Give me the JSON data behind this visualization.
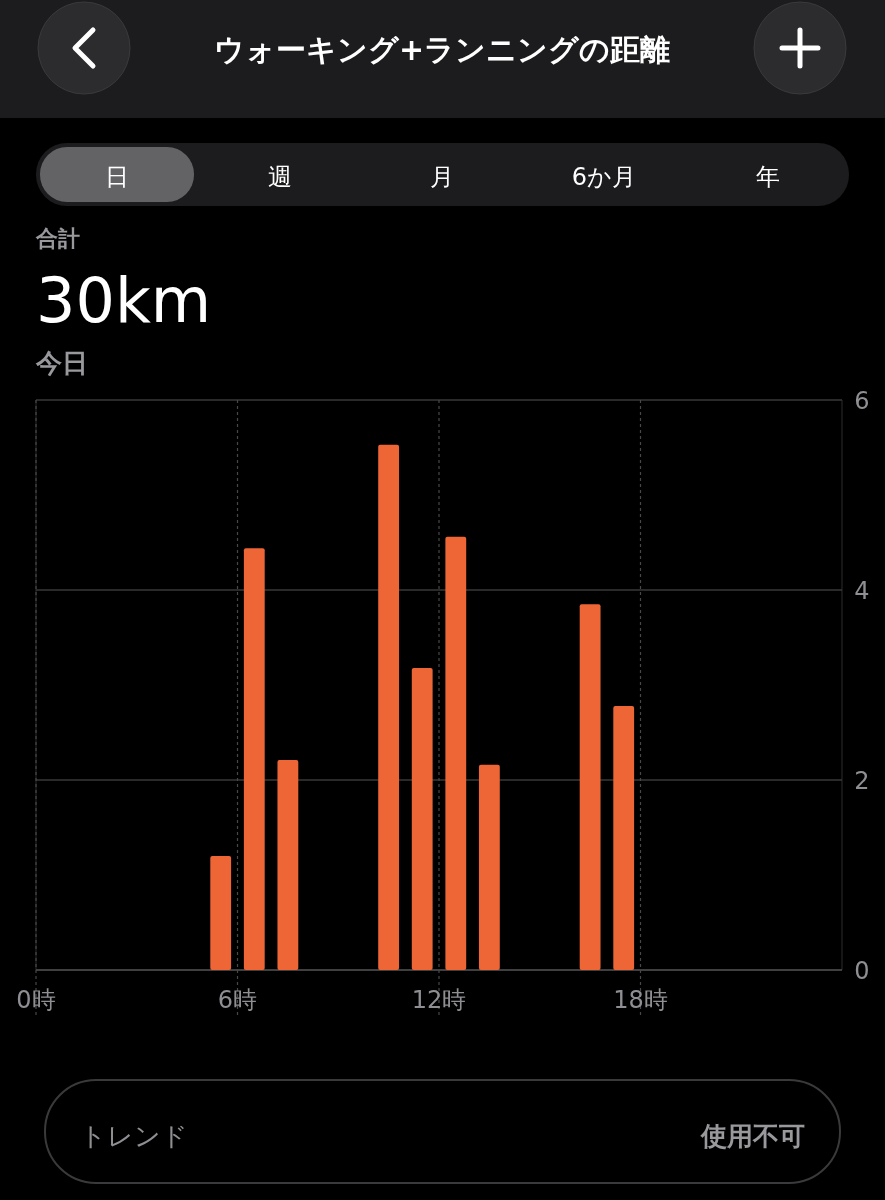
{
  "chart_data": {
    "type": "bar",
    "title": "ウォーキング+ランニングの距離",
    "annotations": [
      "日",
      "週",
      "月",
      "6か月",
      "年",
      "合計",
      "30km",
      "今日",
      "トレンド",
      "使用不可"
    ],
    "x": [
      5.5,
      6.5,
      7.5,
      10.5,
      11.5,
      12.5,
      13.5,
      16.5,
      17.5
    ],
    "values": [
      1.2,
      4.44,
      2.21,
      5.53,
      3.18,
      4.56,
      2.16,
      3.85,
      2.78
    ],
    "color": "#ee6636",
    "xlim": [
      0,
      24
    ],
    "xticks": [
      {
        "value": 0,
        "label": "0時"
      },
      {
        "value": 6,
        "label": "6時"
      },
      {
        "value": 12,
        "label": "12時"
      },
      {
        "value": 18,
        "label": "18時"
      }
    ],
    "ylim": [
      0,
      6
    ],
    "yticks": [
      0,
      2,
      4,
      6
    ],
    "grid": true
  }
}
